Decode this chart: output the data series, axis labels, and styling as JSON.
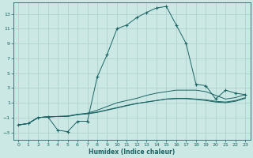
{
  "xlabel": "Humidex (Indice chaleur)",
  "bg_color": "#cce8e4",
  "line_color": "#1a6464",
  "grid_color": "#aacfcb",
  "xlim": [
    -0.5,
    23.5
  ],
  "ylim": [
    -4.0,
    14.5
  ],
  "yticks": [
    -3,
    -1,
    1,
    3,
    5,
    7,
    9,
    11,
    13
  ],
  "xticks": [
    0,
    1,
    2,
    3,
    4,
    5,
    6,
    7,
    8,
    9,
    10,
    11,
    12,
    13,
    14,
    15,
    16,
    17,
    18,
    19,
    20,
    21,
    22,
    23
  ],
  "series1_x": [
    0,
    1,
    2,
    3,
    4,
    5,
    6,
    7,
    8,
    9,
    10,
    11,
    12,
    13,
    14,
    15,
    16,
    17,
    18,
    19,
    20,
    21,
    22,
    23
  ],
  "series1_y": [
    -2.0,
    -1.8,
    -1.0,
    -0.9,
    -2.7,
    -2.9,
    -1.5,
    -1.5,
    4.5,
    7.5,
    11.0,
    11.5,
    12.5,
    13.2,
    13.8,
    14.0,
    11.5,
    9.0,
    3.5,
    3.3,
    1.5,
    2.7,
    2.3,
    2.1
  ],
  "series2_x": [
    0,
    1,
    2,
    3,
    4,
    5,
    6,
    7,
    8,
    9,
    10,
    11,
    12,
    13,
    14,
    15,
    16,
    17,
    18,
    19,
    20,
    21,
    22,
    23
  ],
  "series2_y": [
    -2.0,
    -1.8,
    -1.0,
    -0.9,
    -0.85,
    -0.85,
    -0.6,
    -0.4,
    0.0,
    0.5,
    1.0,
    1.3,
    1.6,
    2.0,
    2.3,
    2.5,
    2.7,
    2.7,
    2.7,
    2.5,
    2.0,
    1.5,
    1.7,
    2.1
  ],
  "series3_x": [
    0,
    1,
    2,
    3,
    4,
    5,
    6,
    7,
    8,
    9,
    10,
    11,
    12,
    13,
    14,
    15,
    16,
    17,
    18,
    19,
    20,
    21,
    22,
    23
  ],
  "series3_y": [
    -2.0,
    -1.8,
    -1.0,
    -0.9,
    -0.85,
    -0.8,
    -0.6,
    -0.5,
    -0.3,
    0.0,
    0.3,
    0.6,
    0.9,
    1.1,
    1.3,
    1.5,
    1.6,
    1.6,
    1.5,
    1.4,
    1.2,
    1.1,
    1.3,
    1.7
  ],
  "series4_x": [
    0,
    1,
    2,
    3,
    4,
    5,
    6,
    7,
    8,
    9,
    10,
    11,
    12,
    13,
    14,
    15,
    16,
    17,
    18,
    19,
    20,
    21,
    22,
    23
  ],
  "series4_y": [
    -2.0,
    -1.8,
    -1.0,
    -0.9,
    -0.85,
    -0.8,
    -0.55,
    -0.45,
    -0.25,
    0.05,
    0.35,
    0.65,
    0.9,
    1.1,
    1.3,
    1.5,
    1.55,
    1.55,
    1.45,
    1.3,
    1.1,
    1.0,
    1.2,
    1.6
  ]
}
